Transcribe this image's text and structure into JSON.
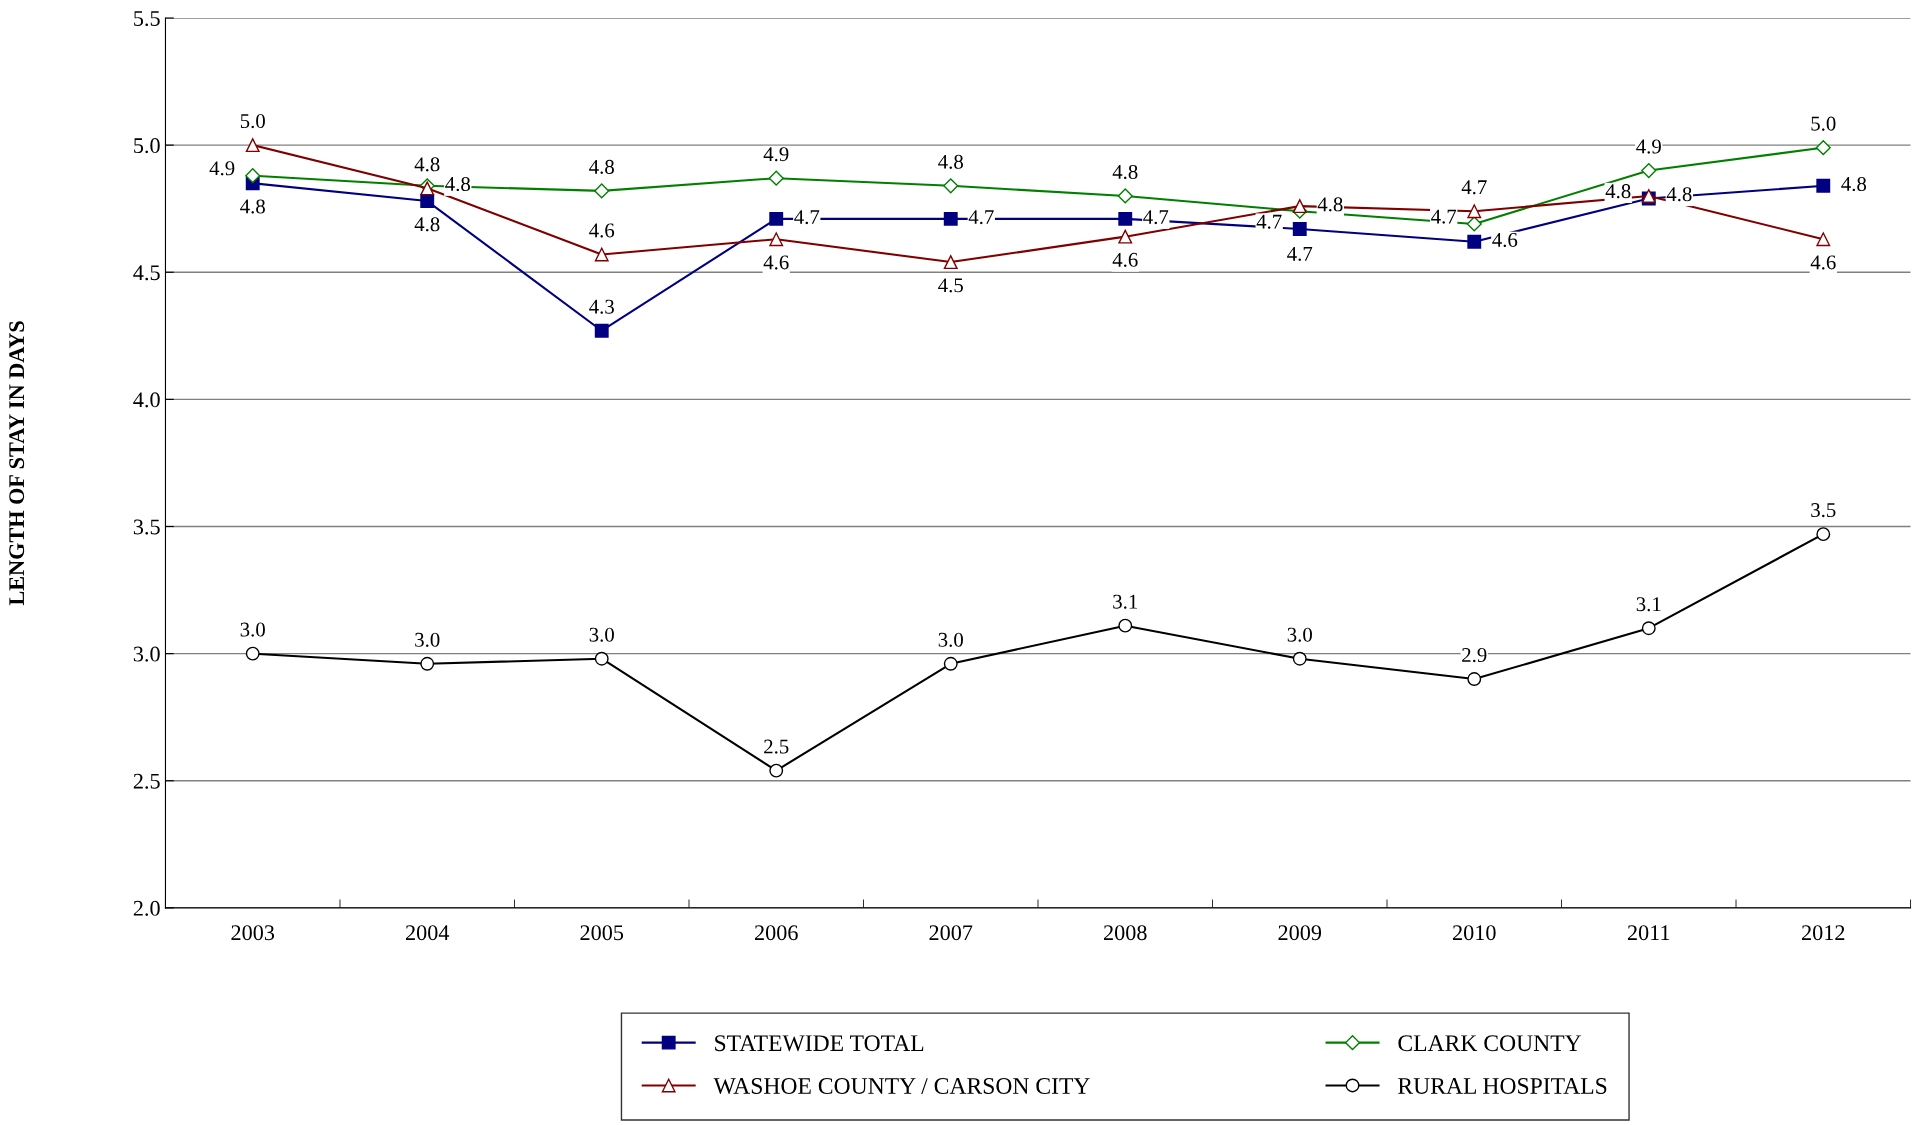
{
  "chart_data": {
    "type": "line",
    "ylabel": "LENGTH OF STAY IN DAYS",
    "categories": [
      "2003",
      "2004",
      "2005",
      "2006",
      "2007",
      "2008",
      "2009",
      "2010",
      "2011",
      "2012"
    ],
    "ylim": [
      2.0,
      5.5
    ],
    "yticks": [
      {
        "value": 2.0,
        "label": "2.0"
      },
      {
        "value": 2.5,
        "label": "2.5"
      },
      {
        "value": 3.0,
        "label": "3.0"
      },
      {
        "value": 3.5,
        "label": "3.5"
      },
      {
        "value": 4.0,
        "label": "4.0"
      },
      {
        "value": 4.5,
        "label": "4.5"
      },
      {
        "value": 5.0,
        "label": "5.0"
      },
      {
        "value": 5.5,
        "label": "5.5"
      }
    ],
    "grid": "y",
    "legend": "bottom",
    "line_style": "solid",
    "series": [
      {
        "name": "STATEWIDE TOTAL",
        "color": "#000080",
        "marker": "square",
        "values": [
          4.85,
          4.78,
          4.27,
          4.71,
          4.71,
          4.71,
          4.67,
          4.62,
          4.79,
          4.84
        ],
        "value_labels": [
          "4.8",
          "4.8",
          "4.3",
          "4.7",
          "4.7",
          "4.7",
          "4.7",
          "4.6",
          "4.8",
          "4.8"
        ]
      },
      {
        "name": "CLARK COUNTY",
        "color": "#008000",
        "marker": "diamond",
        "values": [
          4.88,
          4.84,
          4.82,
          4.87,
          4.84,
          4.8,
          4.74,
          4.69,
          4.9,
          4.99
        ],
        "value_labels": [
          "4.9",
          "4.8",
          "4.8",
          "4.9",
          "4.8",
          "4.8",
          "4.7",
          "4.7",
          "4.9",
          "5.0"
        ]
      },
      {
        "name": "WASHOE COUNTY / CARSON CITY",
        "color": "#800000",
        "marker": "triangle",
        "values": [
          5.0,
          4.83,
          4.57,
          4.63,
          4.54,
          4.64,
          4.76,
          4.74,
          4.8,
          4.63
        ],
        "value_labels": [
          "5.0",
          "4.8",
          "4.6",
          "4.6",
          "4.5",
          "4.6",
          "4.8",
          "4.7",
          "4.8",
          "4.6"
        ]
      },
      {
        "name": "RURAL HOSPITALS",
        "color": "#000000",
        "marker": "circle",
        "values": [
          3.0,
          2.96,
          2.98,
          2.54,
          2.96,
          3.11,
          2.98,
          2.9,
          3.1,
          3.47
        ],
        "value_labels": [
          "3.0",
          "3.0",
          "3.0",
          "2.5",
          "3.0",
          "3.1",
          "3.0",
          "2.9",
          "3.1",
          "3.5"
        ]
      }
    ]
  }
}
